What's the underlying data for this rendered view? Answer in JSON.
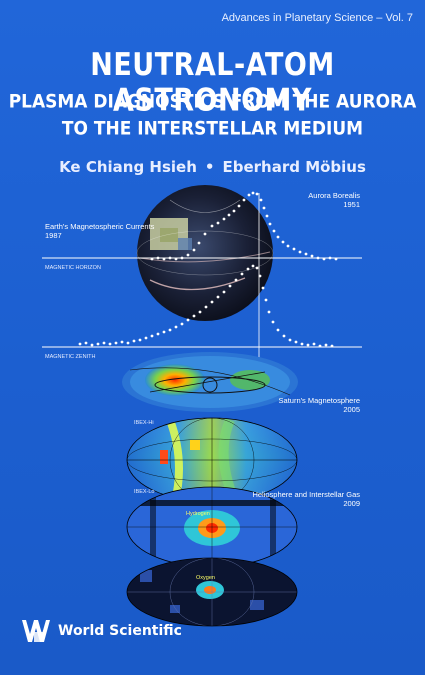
{
  "cover": {
    "series": "Advances in Planetary Science – Vol. 7",
    "title_line1": "NEUTRAL-ATOM ASTRONOMY",
    "title_line2": "PLASMA DIAGNOSTICS FROM THE AURORA",
    "title_line3": "TO THE INTERSTELLAR MEDIUM",
    "author1": "Ke Chiang Hsieh",
    "separator": "•",
    "author2": "Eberhard Möbius",
    "publisher": "World Scientific"
  },
  "labels": {
    "aurora_title": "Aurora Borealis",
    "aurora_year": "1951",
    "currents_title": "Earth's Magnetospheric Currents",
    "currents_year": "1987",
    "magnetic_horizon": "MAGNETIC HORIZON",
    "magnetic_zenith": "MAGNETIC ZENITH",
    "saturn_title": "Saturn's Magnetosphere",
    "saturn_year": "2005",
    "ibex_hi": "IBEX-Hi",
    "helio_title": "Heliosphere and Interstellar Gas",
    "helio_year": "2009",
    "ibex_lo": "IBEX-Lo",
    "hydrogen": "Hydrogen",
    "oxygen": "Oxygen"
  },
  "colors": {
    "background": "#1d62d4",
    "text": "#ffffff"
  }
}
